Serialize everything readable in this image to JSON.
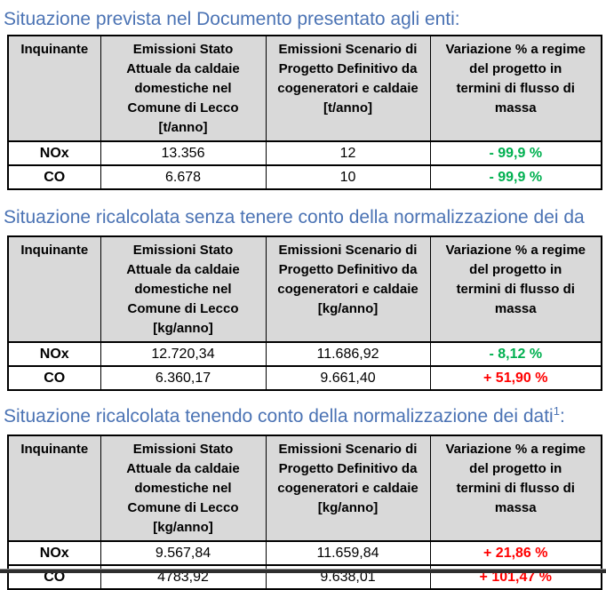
{
  "colors": {
    "heading_blue": "#4B73B4",
    "table_header_gray": "#D9D9D9",
    "decrease_green": "#00B050",
    "increase_red": "#FF0000"
  },
  "sections": [
    {
      "heading": {
        "text": "Situazione prevista nel Documento presentato agli enti:",
        "sup": "",
        "tail": ""
      },
      "table": {
        "col_inquinante": [
          "Inquinante"
        ],
        "col_stato": [
          "Emissioni Stato",
          "Attuale da caldaie",
          "domestiche nel",
          "Comune di Lecco",
          "[t/anno]"
        ],
        "col_scenario": [
          "Emissioni Scenario di",
          "Progetto Definitivo da",
          "cogeneratori e caldaie",
          "[t/anno]"
        ],
        "col_variazione": [
          "Variazione % a regime",
          "del progetto in",
          "termini di flusso di",
          "massa"
        ],
        "rows": [
          {
            "pollutant": "NOx",
            "stato": "13.356",
            "scenario": "12",
            "variazione": "- 99,9 %",
            "trend": "decrease"
          },
          {
            "pollutant": "CO",
            "stato": "6.678",
            "scenario": "10",
            "variazione": "- 99,9 %",
            "trend": "decrease"
          }
        ]
      }
    },
    {
      "heading": {
        "text": "Situazione ricalcolata senza tenere conto della normalizzazione dei da",
        "sup": "",
        "tail": ""
      },
      "table": {
        "col_inquinante": [
          "Inquinante"
        ],
        "col_stato": [
          "Emissioni Stato",
          "Attuale da caldaie",
          "domestiche nel",
          "Comune di Lecco",
          "[kg/anno]"
        ],
        "col_scenario": [
          "Emissioni Scenario di",
          "Progetto Definitivo da",
          "cogeneratori e caldaie",
          "[kg/anno]"
        ],
        "col_variazione": [
          "Variazione % a regime",
          "del progetto in",
          "termini di flusso di",
          "massa"
        ],
        "rows": [
          {
            "pollutant": "NOx",
            "stato": "12.720,34",
            "scenario": "11.686,92",
            "variazione": "- 8,12 %",
            "trend": "decrease"
          },
          {
            "pollutant": "CO",
            "stato": "6.360,17",
            "scenario": "9.661,40",
            "variazione": "+ 51,90 %",
            "trend": "increase"
          }
        ]
      }
    },
    {
      "heading": {
        "text": "Situazione ricalcolata tenendo conto della normalizzazione dei dati",
        "sup": "1",
        "tail": ":"
      },
      "table": {
        "col_inquinante": [
          "Inquinante"
        ],
        "col_stato": [
          "Emissioni Stato",
          "Attuale da caldaie",
          "domestiche nel",
          "Comune di Lecco",
          "[kg/anno]"
        ],
        "col_scenario": [
          "Emissioni Scenario di",
          "Progetto Definitivo da",
          "cogeneratori e caldaie",
          "[kg/anno]"
        ],
        "col_variazione": [
          "Variazione % a regime",
          "del progetto in",
          "termini di flusso di",
          "massa"
        ],
        "rows": [
          {
            "pollutant": "NOx",
            "stato": "9.567,84",
            "scenario": "11.659,84",
            "variazione": "+ 21,86 %",
            "trend": "increase"
          },
          {
            "pollutant": "CO",
            "stato": "4783,92",
            "scenario": "9.638,01",
            "variazione": "+ 101,47 %",
            "trend": "increase"
          }
        ]
      }
    }
  ]
}
